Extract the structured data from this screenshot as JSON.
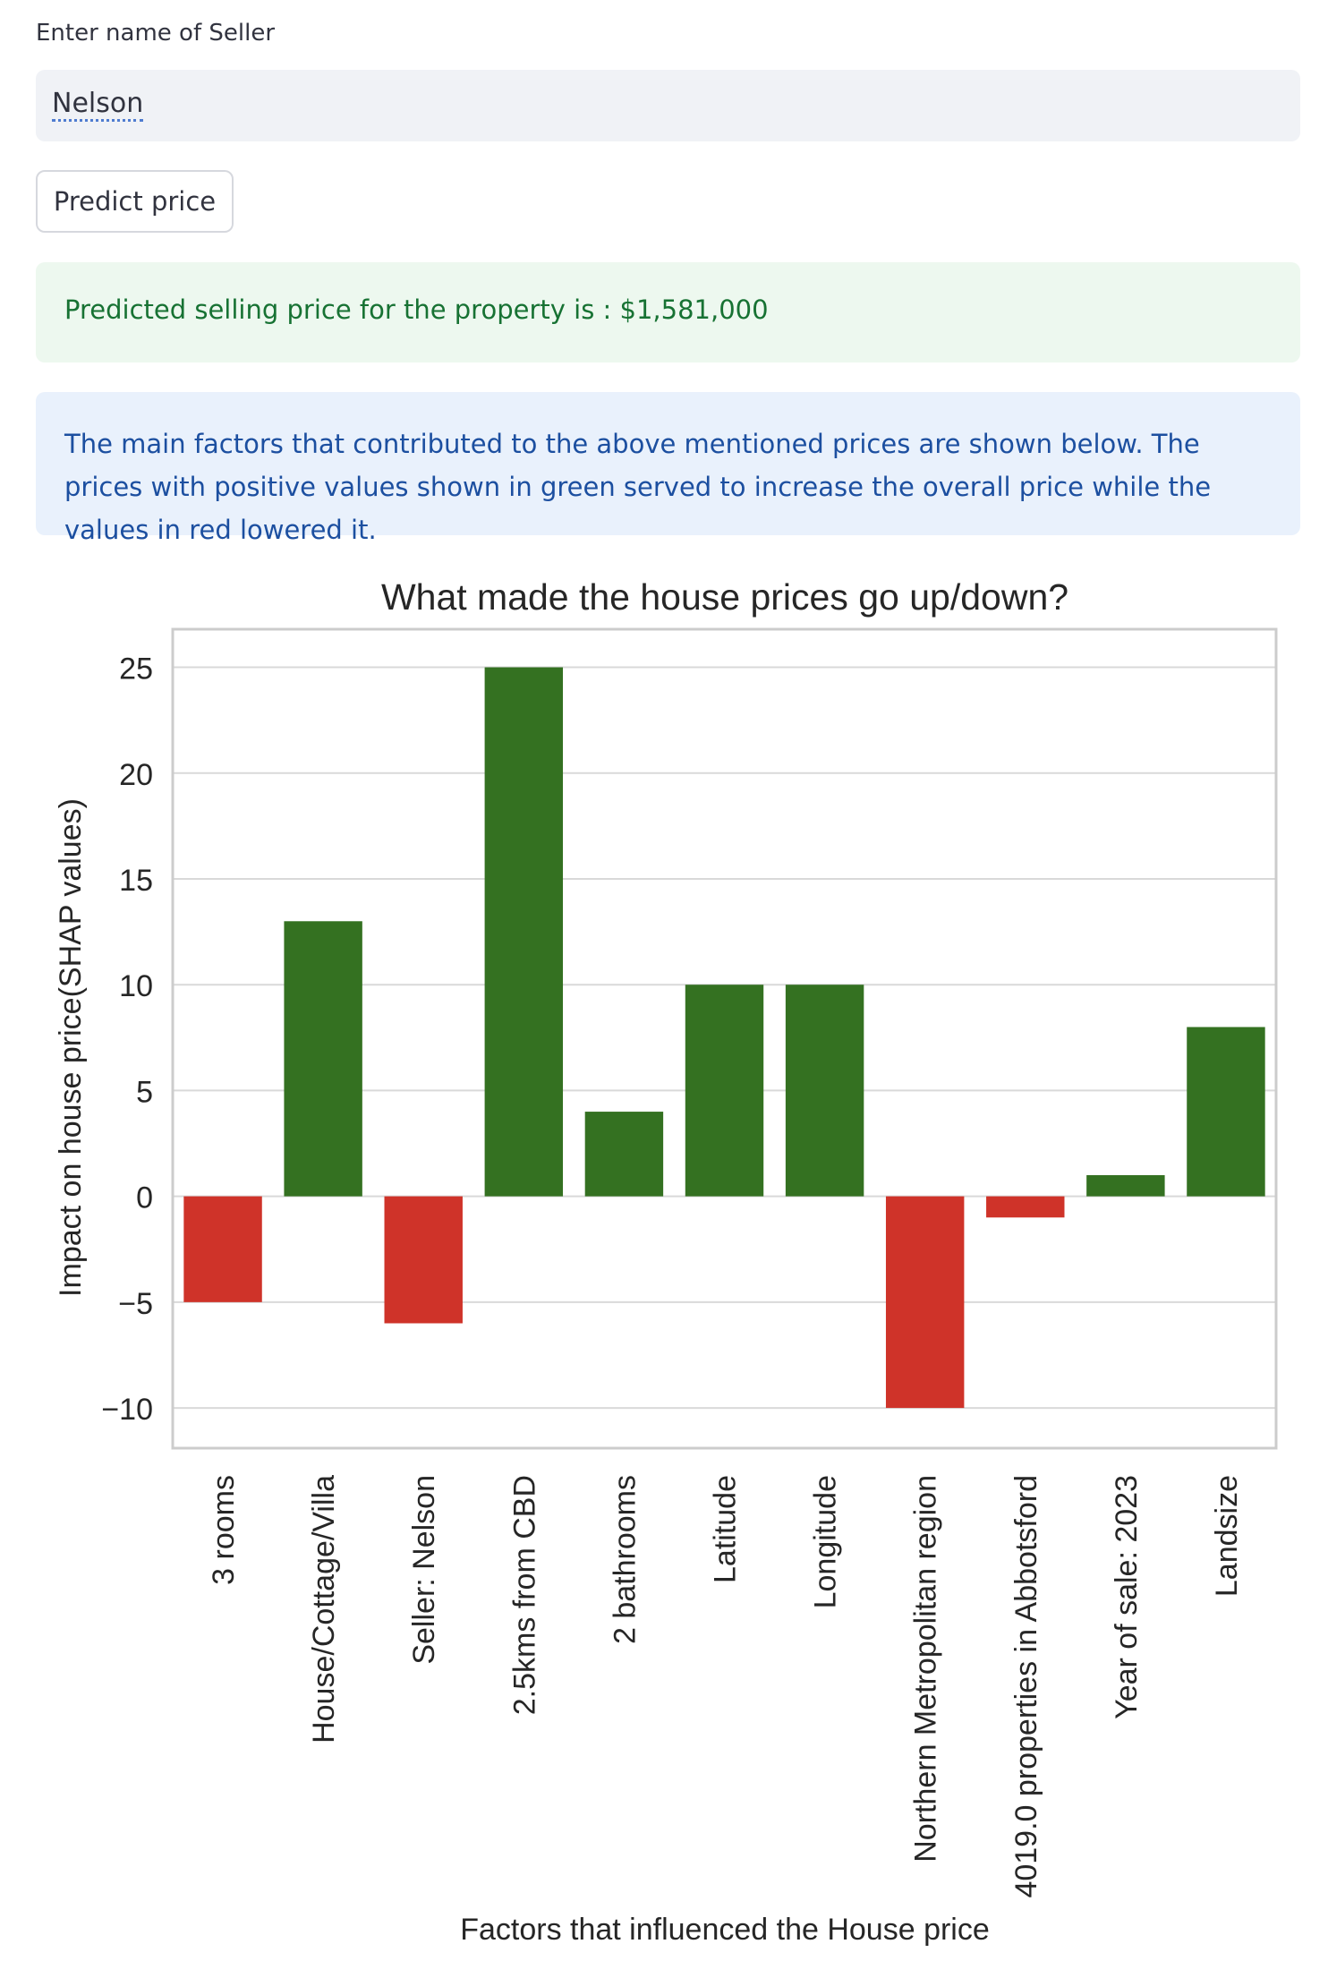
{
  "seller_input": {
    "label": "Enter name of Seller",
    "value": "Nelson"
  },
  "predict_button": {
    "label": "Predict price"
  },
  "success_message": {
    "text": "Predicted selling price for the property is : $1,581,000"
  },
  "info_message": {
    "text": "The main factors that contributed to the above mentioned prices are shown below. The prices with positive values shown in green served to increase the overall price while the values in red lowered it."
  },
  "colors": {
    "positive": "#347121",
    "negative": "#cf3329",
    "success_text": "#177233",
    "info_text": "#1c4fa0"
  },
  "chart_data": {
    "type": "bar",
    "title": "What made the house prices go up/down?",
    "xlabel": "Factors that influenced the House price",
    "ylabel": "Impact on house price(SHAP values)",
    "ylim": [
      -11.9,
      26.8
    ],
    "yticks": [
      -10,
      -5,
      0,
      5,
      10,
      15,
      20,
      25
    ],
    "ytick_labels": [
      "−10",
      "−5",
      "0",
      "5",
      "10",
      "15",
      "20",
      "25"
    ],
    "grid": true,
    "categories": [
      "3 rooms",
      "House/Cottage/Villa",
      "Seller: Nelson",
      "2.5kms from CBD",
      "2 bathrooms",
      "Latitude",
      "Longitude",
      "Northern Metropolitan region",
      "4019.0 properties in Abbotsford",
      "Year of sale: 2023",
      "Landsize"
    ],
    "values": [
      -5,
      13,
      -6,
      25,
      4,
      10,
      10,
      -10,
      -1,
      1,
      8
    ]
  }
}
